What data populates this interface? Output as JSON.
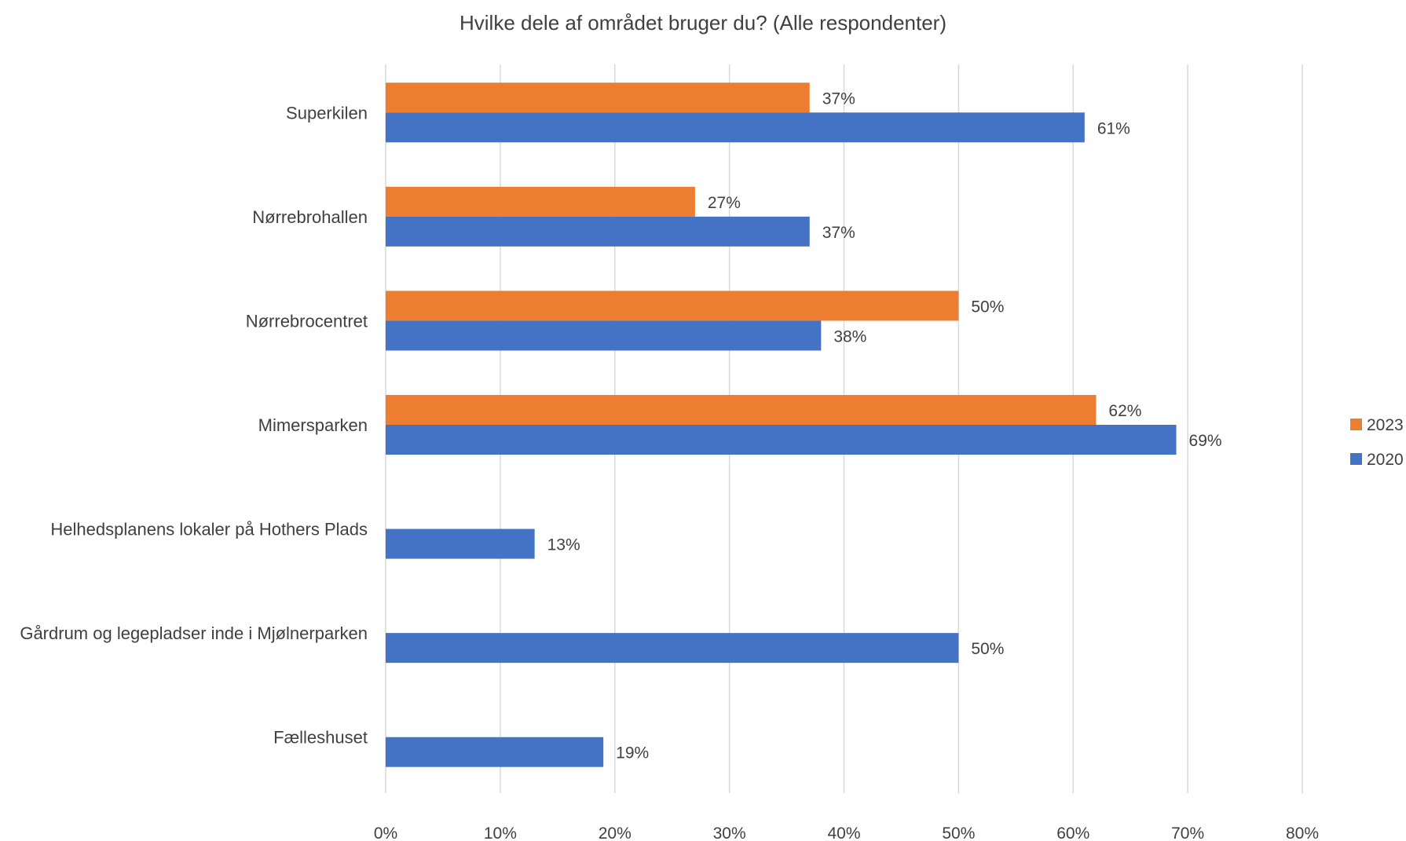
{
  "chart_data": {
    "type": "bar",
    "orientation": "horizontal",
    "title": "Hvilke dele af området bruger du? (Alle respondenter)",
    "categories": [
      "Superkilen",
      "Nørrebrohallen",
      "Nørrebrocentret",
      "Mimersparken",
      "Helhedsplanens lokaler på Hothers Plads",
      "Gårdrum og legepladser inde i Mjølnerparken",
      "Fælleshuset"
    ],
    "series": [
      {
        "name": "2023",
        "color": "#ED7D31",
        "values": [
          37,
          27,
          50,
          62,
          null,
          null,
          null
        ],
        "labels": [
          "37%",
          "27%",
          "50%",
          "62%",
          "",
          "",
          ""
        ]
      },
      {
        "name": "2020",
        "color": "#4472C4",
        "values": [
          61,
          37,
          38,
          69,
          13,
          50,
          19
        ],
        "labels": [
          "61%",
          "37%",
          "38%",
          "69%",
          "13%",
          "50%",
          "19%"
        ]
      }
    ],
    "xlim": [
      0,
      80
    ],
    "xticks": [
      0,
      10,
      20,
      30,
      40,
      50,
      60,
      70,
      80
    ],
    "xtick_labels": [
      "0%",
      "10%",
      "20%",
      "30%",
      "40%",
      "50%",
      "60%",
      "70%",
      "80%"
    ],
    "grid": "vertical",
    "legend": [
      "2023",
      "2020"
    ],
    "legend_position": "right",
    "gridline_color": "#D9D9D9"
  }
}
